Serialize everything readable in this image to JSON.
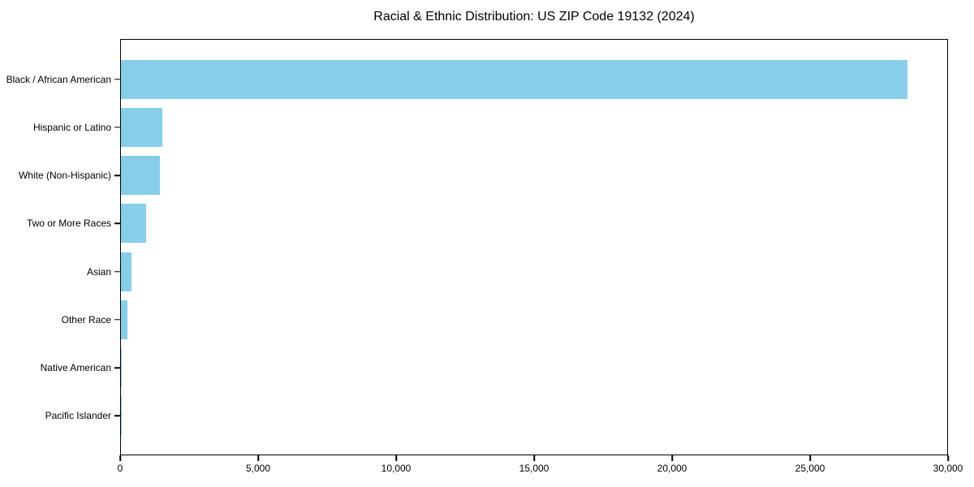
{
  "chart_data": {
    "type": "bar",
    "orientation": "horizontal",
    "title": "Racial & Ethnic Distribution: US ZIP Code 19132 (2024)",
    "categories": [
      "Black / African American",
      "Hispanic or Latino",
      "White (Non-Hispanic)",
      "Two or More Races",
      "Asian",
      "Other Race",
      "Native American",
      "Pacific Islander"
    ],
    "values": [
      28560,
      1510,
      1410,
      910,
      390,
      235,
      40,
      15
    ],
    "bar_color": "#87CEEB",
    "xlabel": "",
    "ylabel": "",
    "xlim": [
      0,
      30000
    ],
    "xticks": [
      0,
      5000,
      10000,
      15000,
      20000,
      25000,
      30000
    ],
    "xtick_labels": [
      "0",
      "5,000",
      "10,000",
      "15,000",
      "20,000",
      "25,000",
      "30,000"
    ],
    "grid": false,
    "legend": null,
    "background_color": "#ffffff",
    "frame_color": "#000000"
  }
}
